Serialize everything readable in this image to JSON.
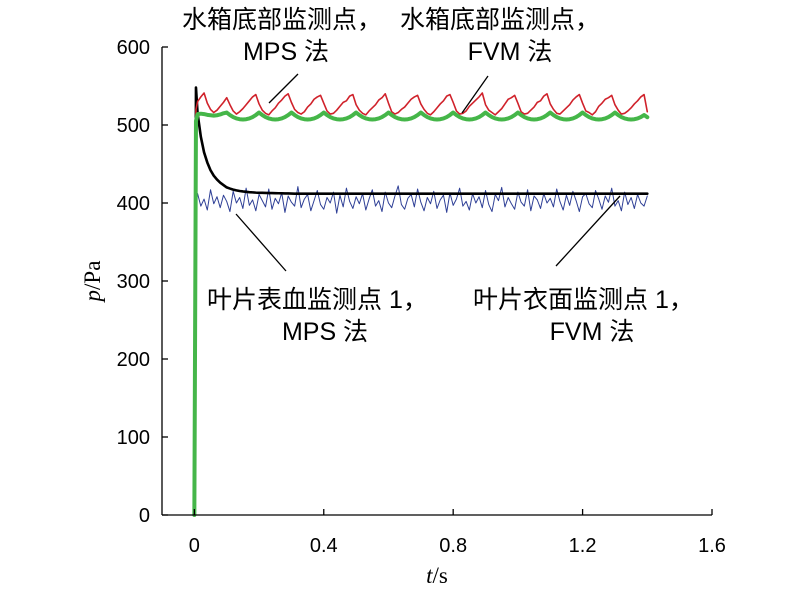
{
  "chart_data": {
    "type": "line",
    "xlabel": {
      "var": "t",
      "unit": "/s"
    },
    "ylabel": {
      "var": "p",
      "unit": "/Pa"
    },
    "xlim": [
      -0.1,
      1.6
    ],
    "ylim": [
      0,
      600
    ],
    "grid": false,
    "xticks": [
      {
        "value": 0,
        "label": "0"
      },
      {
        "value": 0.4,
        "label": "0.4"
      },
      {
        "value": 0.8,
        "label": "0.8"
      },
      {
        "value": 1.2,
        "label": "1.2"
      },
      {
        "value": 1.6,
        "label": "1.6"
      }
    ],
    "yticks": [
      {
        "value": 0,
        "label": "0"
      },
      {
        "value": 100,
        "label": "100"
      },
      {
        "value": 200,
        "label": "200"
      },
      {
        "value": 300,
        "label": "300"
      },
      {
        "value": 400,
        "label": "400"
      },
      {
        "value": 500,
        "label": "500"
      },
      {
        "value": 600,
        "label": "600"
      }
    ],
    "x": [
      0,
      0.005,
      0.01,
      0.02,
      0.03,
      0.04,
      0.05,
      0.06,
      0.07,
      0.08,
      0.09,
      0.1,
      0.11,
      0.12,
      0.13,
      0.14,
      0.15,
      0.16,
      0.17,
      0.18,
      0.19,
      0.2,
      0.21,
      0.22,
      0.23,
      0.24,
      0.25,
      0.26,
      0.27,
      0.28,
      0.29,
      0.3,
      0.31,
      0.32,
      0.33,
      0.34,
      0.35,
      0.36,
      0.37,
      0.38,
      0.39,
      0.4,
      0.41,
      0.42,
      0.43,
      0.44,
      0.45,
      0.46,
      0.47,
      0.48,
      0.49,
      0.5,
      0.51,
      0.52,
      0.53,
      0.54,
      0.55,
      0.56,
      0.57,
      0.58,
      0.59,
      0.6,
      0.61,
      0.62,
      0.63,
      0.64,
      0.65,
      0.66,
      0.67,
      0.68,
      0.69,
      0.7,
      0.71,
      0.72,
      0.73,
      0.74,
      0.75,
      0.76,
      0.77,
      0.78,
      0.79,
      0.8,
      0.81,
      0.82,
      0.83,
      0.84,
      0.85,
      0.86,
      0.87,
      0.88,
      0.89,
      0.9,
      0.91,
      0.92,
      0.93,
      0.94,
      0.95,
      0.96,
      0.97,
      0.98,
      0.99,
      1.0,
      1.01,
      1.02,
      1.03,
      1.04,
      1.05,
      1.06,
      1.07,
      1.08,
      1.09,
      1.1,
      1.11,
      1.12,
      1.13,
      1.14,
      1.15,
      1.16,
      1.17,
      1.18,
      1.19,
      1.2,
      1.21,
      1.22,
      1.23,
      1.24,
      1.25,
      1.26,
      1.27,
      1.28,
      1.29,
      1.3,
      1.31,
      1.32,
      1.33,
      1.34,
      1.35,
      1.36,
      1.37,
      1.38,
      1.39,
      1.4
    ],
    "series": [
      {
        "label": [
          "叶片表血监测点 1，",
          "MPS 法"
        ],
        "color": "#2e3f96",
        "values": [
          null,
          398,
          412,
          396,
          405,
          391,
          417,
          399,
          408,
          394,
          410,
          402,
          389,
          415,
          400,
          407,
          393,
          419,
          397,
          404,
          390,
          411,
          403,
          395,
          418,
          392,
          406,
          399,
          413,
          388,
          409,
          401,
          396,
          421,
          394,
          405,
          411,
          390,
          403,
          416,
          398,
          392,
          407,
          400,
          414,
          387,
          410,
          395,
          419,
          402,
          393,
          408,
          399,
          412,
          391,
          405,
          417,
          396,
          403,
          389,
          414,
          400,
          394,
          409,
          422,
          398,
          392,
          406,
          411,
          395,
          418,
          401,
          390,
          407,
          399,
          415,
          393,
          404,
          410,
          388,
          413,
          397,
          405,
          419,
          396,
          402,
          391,
          412,
          400,
          408,
          394,
          416,
          398,
          389,
          411,
          403,
          420,
          395,
          407,
          399,
          392,
          414,
          401,
          396,
          417,
          390,
          409,
          404,
          393,
          412,
          400,
          406,
          395,
          418,
          402,
          391,
          410,
          397,
          415,
          403,
          389,
          408,
          412,
          399,
          394,
          416,
          405,
          392,
          409,
          401,
          419,
          396,
          403,
          390,
          414,
          398,
          407,
          393,
          411,
          400,
          396,
          409
        ]
      },
      {
        "label": [
          "叶片衣面监测点 1，",
          "FVM 法"
        ],
        "color": "#000000",
        "values": [
          0,
          548,
          515,
          485,
          465,
          452,
          442,
          435,
          430,
          426,
          423,
          420,
          418.5,
          417.2,
          416.2,
          415.4,
          414.8,
          414.3,
          413.9,
          413.6,
          413.3,
          413.1,
          413,
          412.9,
          412.8,
          412.7,
          412.6,
          412.5,
          412.4,
          412.3,
          412.2,
          412.1,
          412,
          412,
          412,
          412,
          412,
          412,
          412,
          412,
          412,
          412,
          412,
          412,
          412,
          412,
          412,
          412,
          412,
          412,
          412,
          412,
          412,
          412,
          412,
          412,
          412,
          412,
          412,
          412,
          412,
          412,
          412,
          412,
          412,
          412,
          412,
          412,
          412,
          412,
          412,
          412,
          412,
          412,
          412,
          412,
          412,
          412,
          412,
          412,
          412,
          412,
          412,
          412,
          412,
          412,
          412,
          412,
          412,
          412,
          412,
          412,
          412,
          412,
          412,
          412,
          412,
          412,
          412,
          412,
          412,
          412,
          412,
          412,
          412,
          412,
          412,
          412,
          412,
          412,
          412,
          412,
          412,
          412,
          412,
          412,
          412,
          412,
          412,
          412,
          412,
          412,
          412,
          412,
          412,
          412,
          412,
          412,
          412,
          412,
          412,
          412,
          412,
          412,
          412,
          412,
          412,
          412,
          412,
          412,
          412,
          412
        ]
      },
      {
        "label": [
          "水箱底部监测点，",
          "MPS 法"
        ],
        "color": "#d0222b",
        "values": [
          0,
          520,
          530,
          536,
          541,
          528,
          520,
          516,
          519,
          524,
          529,
          535,
          526,
          518,
          514,
          517,
          521,
          526,
          531,
          536,
          539,
          527,
          519,
          515,
          513,
          518,
          522,
          528,
          532,
          537,
          540,
          529,
          520,
          516,
          514,
          517,
          523,
          527,
          533,
          536,
          538,
          528,
          518,
          514,
          515,
          519,
          524,
          529,
          531,
          537,
          539,
          526,
          519,
          515,
          513,
          518,
          522,
          526,
          532,
          535,
          540,
          528,
          517,
          514,
          516,
          520,
          523,
          528,
          533,
          536,
          538,
          527,
          520,
          515,
          513,
          517,
          522,
          527,
          531,
          537,
          539,
          529,
          518,
          514,
          515,
          518,
          524,
          528,
          532,
          536,
          541,
          526,
          519,
          516,
          513,
          517,
          521,
          527,
          533,
          535,
          538,
          528,
          517,
          514,
          515,
          519,
          523,
          529,
          531,
          537,
          540,
          527,
          520,
          515,
          514,
          518,
          522,
          526,
          532,
          536,
          539,
          528,
          518,
          516,
          513,
          517,
          524,
          528,
          533,
          535,
          538,
          526,
          519,
          514,
          515,
          518,
          522,
          527,
          531,
          536,
          539,
          517
        ]
      },
      {
        "label": [
          "水箱底部监测点，",
          "FVM 法"
        ],
        "color": "#45b649",
        "values": [
          0,
          505,
          514,
          514.5,
          514,
          513,
          512.5,
          512,
          512.5,
          513.5,
          515,
          516,
          512.8,
          510.2,
          508.4,
          507.4,
          507,
          507.4,
          508.4,
          510.2,
          512.8,
          516,
          512.8,
          510.2,
          508.4,
          507.4,
          507,
          507.4,
          508.4,
          510.2,
          512.8,
          516,
          512.8,
          510.2,
          508.4,
          507.4,
          507,
          507.4,
          508.4,
          510.2,
          512.8,
          516,
          512.8,
          510.2,
          508.4,
          507.4,
          507,
          507.4,
          508.4,
          510.2,
          512.8,
          516,
          512.8,
          510.2,
          508.4,
          507.4,
          507,
          507.4,
          508.4,
          510.2,
          512.8,
          516,
          512.8,
          510.2,
          508.4,
          507.4,
          507,
          507.4,
          508.4,
          510.2,
          512.8,
          516,
          512.8,
          510.2,
          508.4,
          507.4,
          507,
          507.4,
          508.4,
          510.2,
          512.8,
          516,
          512.8,
          510.2,
          508.4,
          507.4,
          507,
          507.4,
          508.4,
          510.2,
          512.8,
          516,
          512.8,
          510.2,
          508.4,
          507.4,
          507,
          507.4,
          508.4,
          510.2,
          512.8,
          516,
          512.8,
          510.2,
          508.4,
          507.4,
          507,
          507.4,
          508.4,
          510.2,
          512.8,
          516,
          512.8,
          510.2,
          508.4,
          507.4,
          507,
          507.4,
          508.4,
          510.2,
          512.8,
          516,
          512.8,
          510.2,
          508.4,
          507.4,
          507,
          507.4,
          508.4,
          510.2,
          512.8,
          516,
          512.8,
          510.2,
          508.4,
          507.4,
          507,
          507.4,
          508.4,
          510.2,
          512.8,
          510
        ]
      }
    ]
  }
}
